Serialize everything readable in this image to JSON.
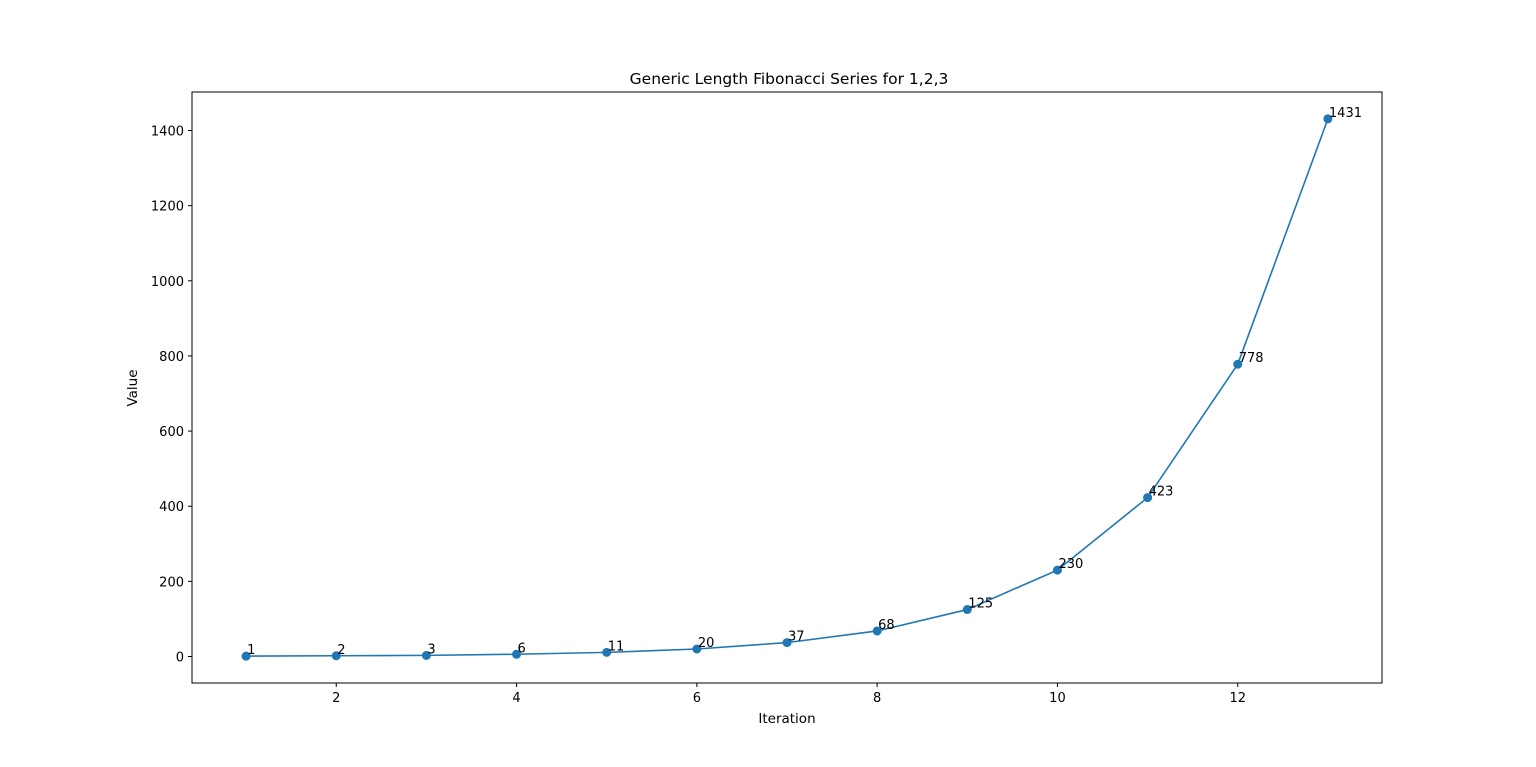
{
  "chart_data": {
    "type": "line",
    "title": "Generic Length Fibonacci Series for 1,2,3",
    "xlabel": "Iteration",
    "ylabel": "Value",
    "x": [
      1,
      2,
      3,
      4,
      5,
      6,
      7,
      8,
      9,
      10,
      11,
      12,
      13
    ],
    "y": [
      1,
      2,
      3,
      6,
      11,
      20,
      37,
      68,
      125,
      230,
      423,
      778,
      1431
    ],
    "data_labels": [
      "1",
      "2",
      "3",
      "6",
      "11",
      "20",
      "37",
      "68",
      "125",
      "230",
      "423",
      "778",
      "1431"
    ],
    "xlim": [
      0.4,
      13.6
    ],
    "ylim": [
      -70.5,
      1502.5
    ],
    "xticks": [
      2,
      4,
      6,
      8,
      10,
      12
    ],
    "xtick_labels": [
      "2",
      "4",
      "6",
      "8",
      "10",
      "12"
    ],
    "yticks": [
      0,
      200,
      400,
      600,
      800,
      1000,
      1200,
      1400
    ],
    "ytick_labels": [
      "0",
      "200",
      "400",
      "600",
      "800",
      "1000",
      "1200",
      "1400"
    ],
    "grid": false,
    "marker": "circle",
    "color": "#1f77b4"
  }
}
